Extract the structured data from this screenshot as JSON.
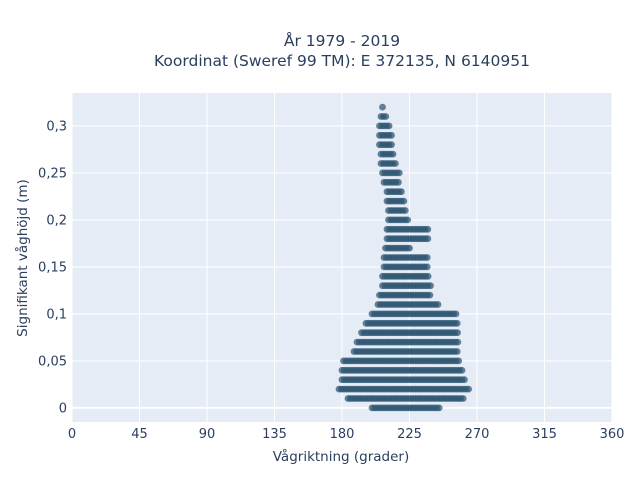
{
  "chart_data": {
    "type": "scatter",
    "title_lines": [
      "År 1979 - 2019",
      "Koordinat (Sweref 99 TM): E 372135, N 6140951"
    ],
    "xlabel": "Vågriktning (grader)",
    "ylabel": "Signifikant våghöjd (m)",
    "xlim": [
      0,
      360
    ],
    "ylim": [
      -0.015,
      0.335
    ],
    "x_ticks": [
      0,
      45,
      90,
      135,
      180,
      225,
      270,
      315,
      360
    ],
    "x_tick_labels": [
      "0",
      "45",
      "90",
      "135",
      "180",
      "225",
      "270",
      "315",
      "360"
    ],
    "y_ticks": [
      0,
      0.05,
      0.1,
      0.15,
      0.2,
      0.25,
      0.3
    ],
    "y_tick_labels": [
      "0",
      "0,05",
      "0,1",
      "0,15",
      "0,2",
      "0,25",
      "0,3"
    ],
    "grid": true,
    "marker_color": "#2d5470",
    "plot_background": "#e5ecf6",
    "approx_extent_by_height": [
      {
        "y": 0.0,
        "x_min": 200,
        "x_max": 245
      },
      {
        "y": 0.01,
        "x_min": 184,
        "x_max": 262
      },
      {
        "y": 0.02,
        "x_min": 178,
        "x_max": 265
      },
      {
        "y": 0.03,
        "x_min": 180,
        "x_max": 262
      },
      {
        "y": 0.04,
        "x_min": 180,
        "x_max": 260
      },
      {
        "y": 0.05,
        "x_min": 181,
        "x_max": 259
      },
      {
        "y": 0.06,
        "x_min": 188,
        "x_max": 258
      },
      {
        "y": 0.07,
        "x_min": 190,
        "x_max": 258
      },
      {
        "y": 0.08,
        "x_min": 193,
        "x_max": 258
      },
      {
        "y": 0.09,
        "x_min": 196,
        "x_max": 258
      },
      {
        "y": 0.1,
        "x_min": 200,
        "x_max": 257
      },
      {
        "y": 0.11,
        "x_min": 204,
        "x_max": 245
      },
      {
        "y": 0.12,
        "x_min": 205,
        "x_max": 240
      },
      {
        "y": 0.13,
        "x_min": 207,
        "x_max": 240
      },
      {
        "y": 0.14,
        "x_min": 207,
        "x_max": 238
      },
      {
        "y": 0.15,
        "x_min": 208,
        "x_max": 238
      },
      {
        "y": 0.16,
        "x_min": 208,
        "x_max": 238
      },
      {
        "y": 0.17,
        "x_min": 209,
        "x_max": 226
      },
      {
        "y": 0.18,
        "x_min": 210,
        "x_max": 238
      },
      {
        "y": 0.19,
        "x_min": 210,
        "x_max": 238
      },
      {
        "y": 0.2,
        "x_min": 211,
        "x_max": 225
      },
      {
        "y": 0.21,
        "x_min": 211,
        "x_max": 223
      },
      {
        "y": 0.22,
        "x_min": 210,
        "x_max": 222
      },
      {
        "y": 0.23,
        "x_min": 210,
        "x_max": 221
      },
      {
        "y": 0.24,
        "x_min": 208,
        "x_max": 219
      },
      {
        "y": 0.25,
        "x_min": 207,
        "x_max": 219
      },
      {
        "y": 0.26,
        "x_min": 206,
        "x_max": 216
      },
      {
        "y": 0.27,
        "x_min": 206,
        "x_max": 215
      },
      {
        "y": 0.28,
        "x_min": 205,
        "x_max": 214
      },
      {
        "y": 0.29,
        "x_min": 205,
        "x_max": 213
      },
      {
        "y": 0.3,
        "x_min": 205,
        "x_max": 212
      },
      {
        "y": 0.31,
        "x_min": 206,
        "x_max": 210
      },
      {
        "y": 0.32,
        "x_min": 207,
        "x_max": 207
      }
    ]
  }
}
